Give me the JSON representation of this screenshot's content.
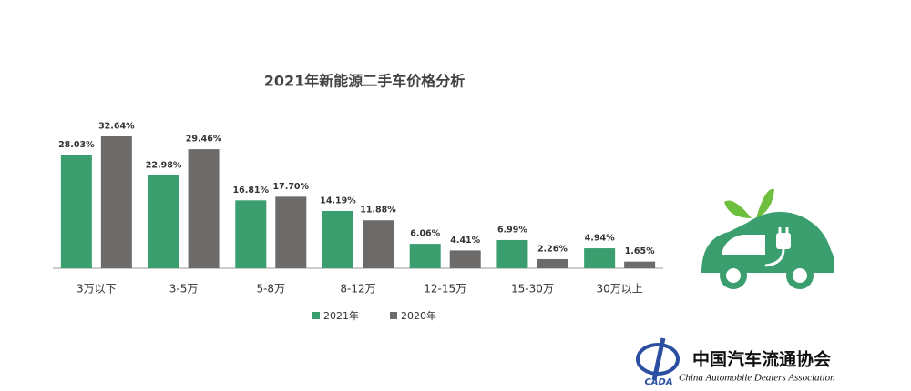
{
  "chart_data": {
    "type": "bar",
    "title": "2021年新能源二手车价格分析",
    "categories": [
      "3万以下",
      "3-5万",
      "5-8万",
      "8-12万",
      "12-15万",
      "15-30万",
      "30万以上"
    ],
    "series": [
      {
        "name": "2021年",
        "color": "#3a9e6e",
        "values": [
          28.03,
          22.98,
          16.81,
          14.19,
          6.06,
          6.99,
          4.94
        ],
        "value_labels": [
          "28.03%",
          "22.98%",
          "16.81%",
          "14.19%",
          "6.06%",
          "6.99%",
          "4.94%"
        ]
      },
      {
        "name": "2020年",
        "color": "#6d6a6a",
        "values": [
          32.64,
          29.46,
          17.7,
          11.88,
          4.41,
          2.26,
          1.65
        ],
        "value_labels": [
          "32.64%",
          "29.46%",
          "17.70%",
          "11.88%",
          "4.41%",
          "2.26%",
          "1.65%"
        ]
      }
    ],
    "legend": "bottom"
  },
  "logo": {
    "abbr": "CADA",
    "name": "中国汽车流通协会",
    "english": "China Automobile Dealers Association"
  }
}
